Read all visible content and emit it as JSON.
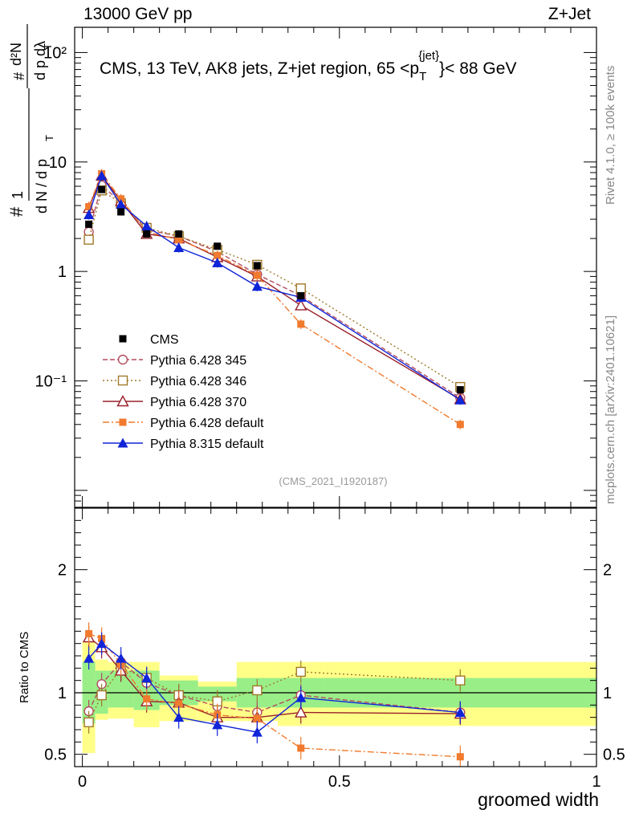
{
  "header": {
    "left": "13000 GeV pp",
    "right": "Z+Jet"
  },
  "side_labels": {
    "rivet": "Rivet 4.1.0, ≥ 100k events",
    "mcplots": "mcplots.cern.ch [arXiv:2401.10621]"
  },
  "chart_data": {
    "type": "line",
    "title": "CMS, 13 TeV, AK8 jets, Z+jet region, 65 <p_T^{jet}< 88 GeV",
    "title_parts": {
      "main": "CMS, 13 TeV, AK8 jets, Z+jet region, 65 <p",
      "sub": "T",
      "sup": "{jet}",
      "tail": "}< 88 GeV"
    },
    "analysis_label": "(CMS_2021_I1920187)",
    "xlabel": "groomed width",
    "ylabel": "1/dN/dpT # d²N/dpT dλ",
    "ratio_ylabel": "Ratio to CMS",
    "xlim": [
      -0.015,
      1.0
    ],
    "ylim_main": [
      0.007,
      170
    ],
    "ylim_ratio": [
      0.4,
      2.5
    ],
    "x_ticks": [
      "0",
      "0.5",
      "1"
    ],
    "y_ticks_main": [
      "10⁻¹",
      "1",
      "10",
      "10²"
    ],
    "y_ticks_ratio": [
      "0.5",
      "1",
      "2"
    ],
    "bin_edges": [
      0,
      0.025,
      0.05,
      0.1,
      0.15,
      0.225,
      0.3,
      0.38,
      0.47,
      1.0
    ],
    "x": [
      0.0125,
      0.0375,
      0.075,
      0.125,
      0.1875,
      0.2625,
      0.34,
      0.425,
      0.735
    ],
    "data": {
      "name": "CMS",
      "values": [
        2.7,
        5.6,
        3.5,
        2.2,
        2.2,
        1.7,
        1.13,
        0.6,
        0.083
      ],
      "band_inner": [
        [
          0.75,
          1.25
        ],
        [
          0.83,
          1.18
        ],
        [
          0.88,
          1.18
        ],
        [
          0.86,
          1.18
        ],
        [
          0.9,
          1.1
        ],
        [
          0.93,
          1.05
        ],
        [
          0.88,
          1.12
        ],
        [
          0.88,
          1.12
        ],
        [
          0.88,
          1.12
        ]
      ],
      "band_outer": [
        [
          0.51,
          1.42
        ],
        [
          0.78,
          1.27
        ],
        [
          0.79,
          1.25
        ],
        [
          0.72,
          1.25
        ],
        [
          0.77,
          1.14
        ],
        [
          0.77,
          1.09
        ],
        [
          0.77,
          1.25
        ],
        [
          0.73,
          1.25
        ],
        [
          0.73,
          1.25
        ]
      ]
    },
    "legend": [
      "CMS",
      "Pythia 6.428 345",
      "Pythia 6.428 346",
      "Pythia 6.428 370",
      "Pythia 6.428 default",
      "Pythia 8.315 default"
    ],
    "series": [
      {
        "name": "Pythia 6.428 345",
        "color": "#b34d5f",
        "dash": "6,3",
        "marker": "circle-open",
        "values": [
          2.3,
          6.1,
          4.3,
          2.4,
          2.1,
          1.52,
          0.94,
          0.6,
          0.07
        ],
        "ratio": [
          0.85,
          1.07,
          1.25,
          1.08,
          0.98,
          0.89,
          0.84,
          0.98,
          0.84
        ]
      },
      {
        "name": "Pythia 6.428 346",
        "color": "#a07a2a",
        "dash": "2,3",
        "marker": "square-open",
        "values": [
          1.95,
          5.5,
          4.2,
          2.5,
          2.1,
          1.58,
          1.15,
          0.7,
          0.088
        ],
        "ratio": [
          0.76,
          0.98,
          1.2,
          1.12,
          0.98,
          0.93,
          1.02,
          1.17,
          1.1
        ]
      },
      {
        "name": "Pythia 6.428 370",
        "color": "#99202a",
        "dash": "",
        "marker": "triangle-open",
        "values": [
          3.8,
          7.5,
          4.4,
          2.2,
          2.0,
          1.35,
          0.9,
          0.49,
          0.068
        ],
        "ratio": [
          1.45,
          1.37,
          1.18,
          0.93,
          0.92,
          0.8,
          0.8,
          0.84,
          0.83
        ]
      },
      {
        "name": "Pythia 6.428 default",
        "color": "#f07a2e",
        "dash": "8,3,2,3",
        "marker": "square-filled",
        "values": [
          3.9,
          7.8,
          4.6,
          2.3,
          1.95,
          1.4,
          0.92,
          0.33,
          0.04
        ],
        "ratio": [
          1.48,
          1.44,
          1.23,
          0.95,
          0.91,
          0.82,
          0.79,
          0.55,
          0.48
        ]
      },
      {
        "name": "Pythia 8.315 default",
        "color": "#1024d8",
        "dash": "",
        "marker": "triangle-filled",
        "values": [
          3.3,
          7.5,
          4.1,
          2.6,
          1.65,
          1.2,
          0.73,
          0.58,
          0.067
        ],
        "ratio": [
          1.28,
          1.4,
          1.28,
          1.12,
          0.8,
          0.74,
          0.68,
          0.96,
          0.84
        ]
      }
    ]
  }
}
